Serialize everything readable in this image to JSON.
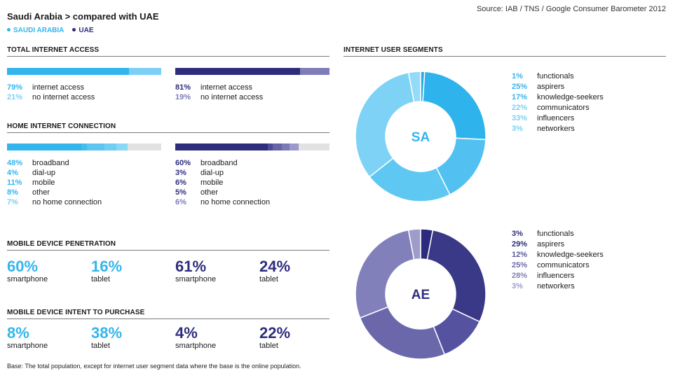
{
  "title": "Saudi Arabia > compared with UAE",
  "source": "Source: IAB / TNS / Google Consumer Barometer 2012",
  "legend": [
    {
      "label": "SAUDI ARABIA",
      "color": "#33b5ec"
    },
    {
      "label": "UAE",
      "color": "#2e2d7d"
    }
  ],
  "colors": {
    "sa_main": "#33b5ec",
    "sa_light": "#7dd0f5",
    "ae_main": "#2e2d7d",
    "ae_light": "#7f7db8",
    "empty": "#e2e2e2"
  },
  "sections": {
    "total_internet": "TOTAL INTERNET ACCESS",
    "home_internet": "HOME INTERNET CONNECTION",
    "mobile_penetration": "MOBILE DEVICE PENETRATION",
    "mobile_intent": "MOBILE DEVICE INTENT TO PURCHASE",
    "segments": "INTERNET USER SEGMENTS"
  },
  "total_access": {
    "sa": [
      {
        "pct": "79%",
        "label": "internet access"
      },
      {
        "pct": "21%",
        "label": "no internet access"
      }
    ],
    "ae": [
      {
        "pct": "81%",
        "label": "internet access"
      },
      {
        "pct": "19%",
        "label": "no internet access"
      }
    ]
  },
  "home_connection": {
    "sa": [
      {
        "pct": "48%",
        "label": "broadband"
      },
      {
        "pct": "4%",
        "label": "dial-up"
      },
      {
        "pct": "11%",
        "label": "mobile"
      },
      {
        "pct": "8%",
        "label": "other"
      },
      {
        "pct": "7%",
        "label": "no home connection"
      }
    ],
    "ae": [
      {
        "pct": "60%",
        "label": "broadband"
      },
      {
        "pct": "3%",
        "label": "dial-up"
      },
      {
        "pct": "6%",
        "label": "mobile"
      },
      {
        "pct": "5%",
        "label": "other"
      },
      {
        "pct": "6%",
        "label": "no home connection"
      }
    ]
  },
  "mobile_penetration": {
    "sa": [
      {
        "value": "60%",
        "label": "smartphone"
      },
      {
        "value": "16%",
        "label": "tablet"
      }
    ],
    "ae": [
      {
        "value": "61%",
        "label": "smartphone"
      },
      {
        "value": "24%",
        "label": "tablet"
      }
    ]
  },
  "mobile_intent": {
    "sa": [
      {
        "value": "8%",
        "label": "smartphone"
      },
      {
        "value": "38%",
        "label": "tablet"
      }
    ],
    "ae": [
      {
        "value": "4%",
        "label": "smartphone"
      },
      {
        "value": "22%",
        "label": "tablet"
      }
    ]
  },
  "segments": {
    "sa": {
      "code": "SA",
      "items": [
        {
          "pct": "1%",
          "label": "functionals"
        },
        {
          "pct": "25%",
          "label": "aspirers"
        },
        {
          "pct": "17%",
          "label": "knowledge-seekers"
        },
        {
          "pct": "22%",
          "label": "communicators"
        },
        {
          "pct": "33%",
          "label": "influencers"
        },
        {
          "pct": "3%",
          "label": "networkers"
        }
      ]
    },
    "ae": {
      "code": "AE",
      "items": [
        {
          "pct": "3%",
          "label": "functionals"
        },
        {
          "pct": "29%",
          "label": "aspirers"
        },
        {
          "pct": "12%",
          "label": "knowledge-seekers"
        },
        {
          "pct": "25%",
          "label": "communicators"
        },
        {
          "pct": "28%",
          "label": "influencers"
        },
        {
          "pct": "3%",
          "label": "networkers"
        }
      ]
    }
  },
  "chart_data": [
    {
      "type": "bar",
      "title": "TOTAL INTERNET ACCESS",
      "categories": [
        "internet access",
        "no internet access"
      ],
      "series": [
        {
          "name": "SAUDI ARABIA",
          "values": [
            79,
            21
          ]
        },
        {
          "name": "UAE",
          "values": [
            81,
            19
          ]
        }
      ]
    },
    {
      "type": "bar",
      "title": "HOME INTERNET CONNECTION",
      "categories": [
        "broadband",
        "dial-up",
        "mobile",
        "other",
        "no home connection"
      ],
      "series": [
        {
          "name": "SAUDI ARABIA",
          "values": [
            48,
            4,
            11,
            8,
            7
          ]
        },
        {
          "name": "UAE",
          "values": [
            60,
            3,
            6,
            5,
            6
          ]
        }
      ]
    },
    {
      "type": "table",
      "title": "MOBILE DEVICE PENETRATION",
      "categories": [
        "smartphone",
        "tablet"
      ],
      "series": [
        {
          "name": "SAUDI ARABIA",
          "values": [
            60,
            16
          ]
        },
        {
          "name": "UAE",
          "values": [
            61,
            24
          ]
        }
      ]
    },
    {
      "type": "table",
      "title": "MOBILE DEVICE INTENT TO PURCHASE",
      "categories": [
        "smartphone",
        "tablet"
      ],
      "series": [
        {
          "name": "SAUDI ARABIA",
          "values": [
            8,
            38
          ]
        },
        {
          "name": "UAE",
          "values": [
            4,
            22
          ]
        }
      ]
    },
    {
      "type": "pie",
      "title": "INTERNET USER SEGMENTS",
      "categories": [
        "functionals",
        "aspirers",
        "knowledge-seekers",
        "communicators",
        "influencers",
        "networkers"
      ],
      "series": [
        {
          "name": "SA",
          "values": [
            1,
            25,
            17,
            22,
            33,
            3
          ]
        },
        {
          "name": "AE",
          "values": [
            3,
            29,
            12,
            25,
            28,
            3
          ]
        }
      ]
    }
  ],
  "footnote": "Base: The total population, except for internet user segment data where the base is the online population."
}
